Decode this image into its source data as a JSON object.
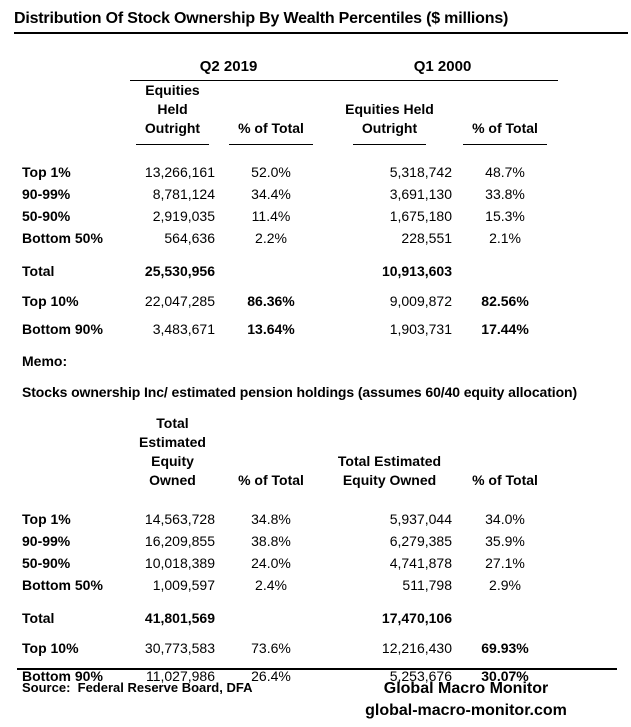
{
  "title": "Distribution Of Stock Ownership By Wealth Percentiles ($ millions)",
  "colors": {
    "text": "#000000",
    "background": "#ffffff",
    "rule": "#000000"
  },
  "table1": {
    "period_headers": {
      "q2": "Q2 2019",
      "q1": "Q1 2000"
    },
    "col_headers": {
      "equities_line1": "Equities Held",
      "equities_line2": "Outright",
      "pct": "% of Total"
    },
    "rows": [
      {
        "label": "Top 1%",
        "q2_value": "13,266,161",
        "q2_pct": "52.0%",
        "q1_value": "5,318,742",
        "q1_pct": "48.7%"
      },
      {
        "label": "90-99%",
        "q2_value": "8,781,124",
        "q2_pct": "34.4%",
        "q1_value": "3,691,130",
        "q1_pct": "33.8%"
      },
      {
        "label": "50-90%",
        "q2_value": "2,919,035",
        "q2_pct": "11.4%",
        "q1_value": "1,675,180",
        "q1_pct": "15.3%"
      },
      {
        "label": "Bottom 50%",
        "q2_value": "564,636",
        "q2_pct": "2.2%",
        "q1_value": "228,551",
        "q1_pct": "2.1%"
      }
    ],
    "total": {
      "label": "Total",
      "q2_value": "25,530,956",
      "q1_value": "10,913,603"
    },
    "summary_rows": [
      {
        "label": "Top 10%",
        "q2_value": "22,047,285",
        "q2_pct": "86.36%",
        "q1_value": "9,009,872",
        "q1_pct": "82.56%"
      },
      {
        "label": "Bottom 90%",
        "q2_value": "3,483,671",
        "q2_pct": "13.64%",
        "q1_value": "1,903,731",
        "q1_pct": "17.44%"
      }
    ]
  },
  "memo": {
    "label": "Memo:",
    "note": "Stocks ownership Inc/ estimated pension holdings (assumes 60/40 equity allocation)"
  },
  "table2": {
    "col_headers": {
      "equity_line1": "Total Estimated",
      "equity_line2": "Equity Owned",
      "pct": "% of Total"
    },
    "rows": [
      {
        "label": "Top 1%",
        "q2_value": "14,563,728",
        "q2_pct": "34.8%",
        "q1_value": "5,937,044",
        "q1_pct": "34.0%"
      },
      {
        "label": "90-99%",
        "q2_value": "16,209,855",
        "q2_pct": "38.8%",
        "q1_value": "6,279,385",
        "q1_pct": "35.9%"
      },
      {
        "label": "50-90%",
        "q2_value": "10,018,389",
        "q2_pct": "24.0%",
        "q1_value": "4,741,878",
        "q1_pct": "27.1%"
      },
      {
        "label": "Bottom 50%",
        "q2_value": "1,009,597",
        "q2_pct": "2.4%",
        "q1_value": "511,798",
        "q1_pct": "2.9%"
      }
    ],
    "total": {
      "label": "Total",
      "q2_value": "41,801,569",
      "q1_value": "17,470,106"
    },
    "summary_rows": [
      {
        "label": "Top 10%",
        "q2_value": "30,773,583",
        "q2_pct": "73.6%",
        "q1_value": "12,216,430",
        "q1_pct": "69.93%"
      },
      {
        "label": "Bottom 90%",
        "q2_value": "11,027,986",
        "q2_pct": "26.4%",
        "q1_value": "5,253,676",
        "q1_pct": "30.07%"
      }
    ]
  },
  "footer": {
    "source": "Source:  Federal Reserve Board, DFA",
    "brand": "Global Macro Monitor",
    "website": "global-macro-monitor.com"
  },
  "chart_data": [
    {
      "type": "table",
      "title": "Distribution Of Stock Ownership By Wealth Percentiles ($ millions)",
      "group_headers": [
        "Q2 2019",
        "Q1 2000"
      ],
      "columns": [
        "Percentile",
        "Q2 2019 Equities Held Outright",
        "Q2 2019 % of Total",
        "Q1 2000 Equities Held Outright",
        "Q1 2000 % of Total"
      ],
      "rows": [
        [
          "Top 1%",
          13266161,
          52.0,
          5318742,
          48.7
        ],
        [
          "90-99%",
          8781124,
          34.4,
          3691130,
          33.8
        ],
        [
          "50-90%",
          2919035,
          11.4,
          1675180,
          15.3
        ],
        [
          "Bottom 50%",
          564636,
          2.2,
          228551,
          2.1
        ],
        [
          "Total",
          25530956,
          null,
          10913603,
          null
        ],
        [
          "Top 10%",
          22047285,
          86.36,
          9009872,
          82.56
        ],
        [
          "Bottom 90%",
          3483671,
          13.64,
          1903731,
          17.44
        ]
      ]
    },
    {
      "type": "table",
      "title": "Stocks ownership Inc/ estimated pension holdings (assumes 60/40 equity allocation)",
      "group_headers": [
        "Q2 2019",
        "Q1 2000"
      ],
      "columns": [
        "Percentile",
        "Q2 2019 Total Estimated Equity Owned",
        "Q2 2019 % of Total",
        "Q1 2000 Total Estimated Equity Owned",
        "Q1 2000 % of Total"
      ],
      "rows": [
        [
          "Top 1%",
          14563728,
          34.8,
          5937044,
          34.0
        ],
        [
          "90-99%",
          16209855,
          38.8,
          6279385,
          35.9
        ],
        [
          "50-90%",
          10018389,
          24.0,
          4741878,
          27.1
        ],
        [
          "Bottom 50%",
          1009597,
          2.4,
          511798,
          2.9
        ],
        [
          "Total",
          41801569,
          null,
          17470106,
          null
        ],
        [
          "Top 10%",
          30773583,
          73.6,
          12216430,
          69.93
        ],
        [
          "Bottom 90%",
          11027986,
          26.4,
          5253676,
          30.07
        ]
      ]
    }
  ]
}
